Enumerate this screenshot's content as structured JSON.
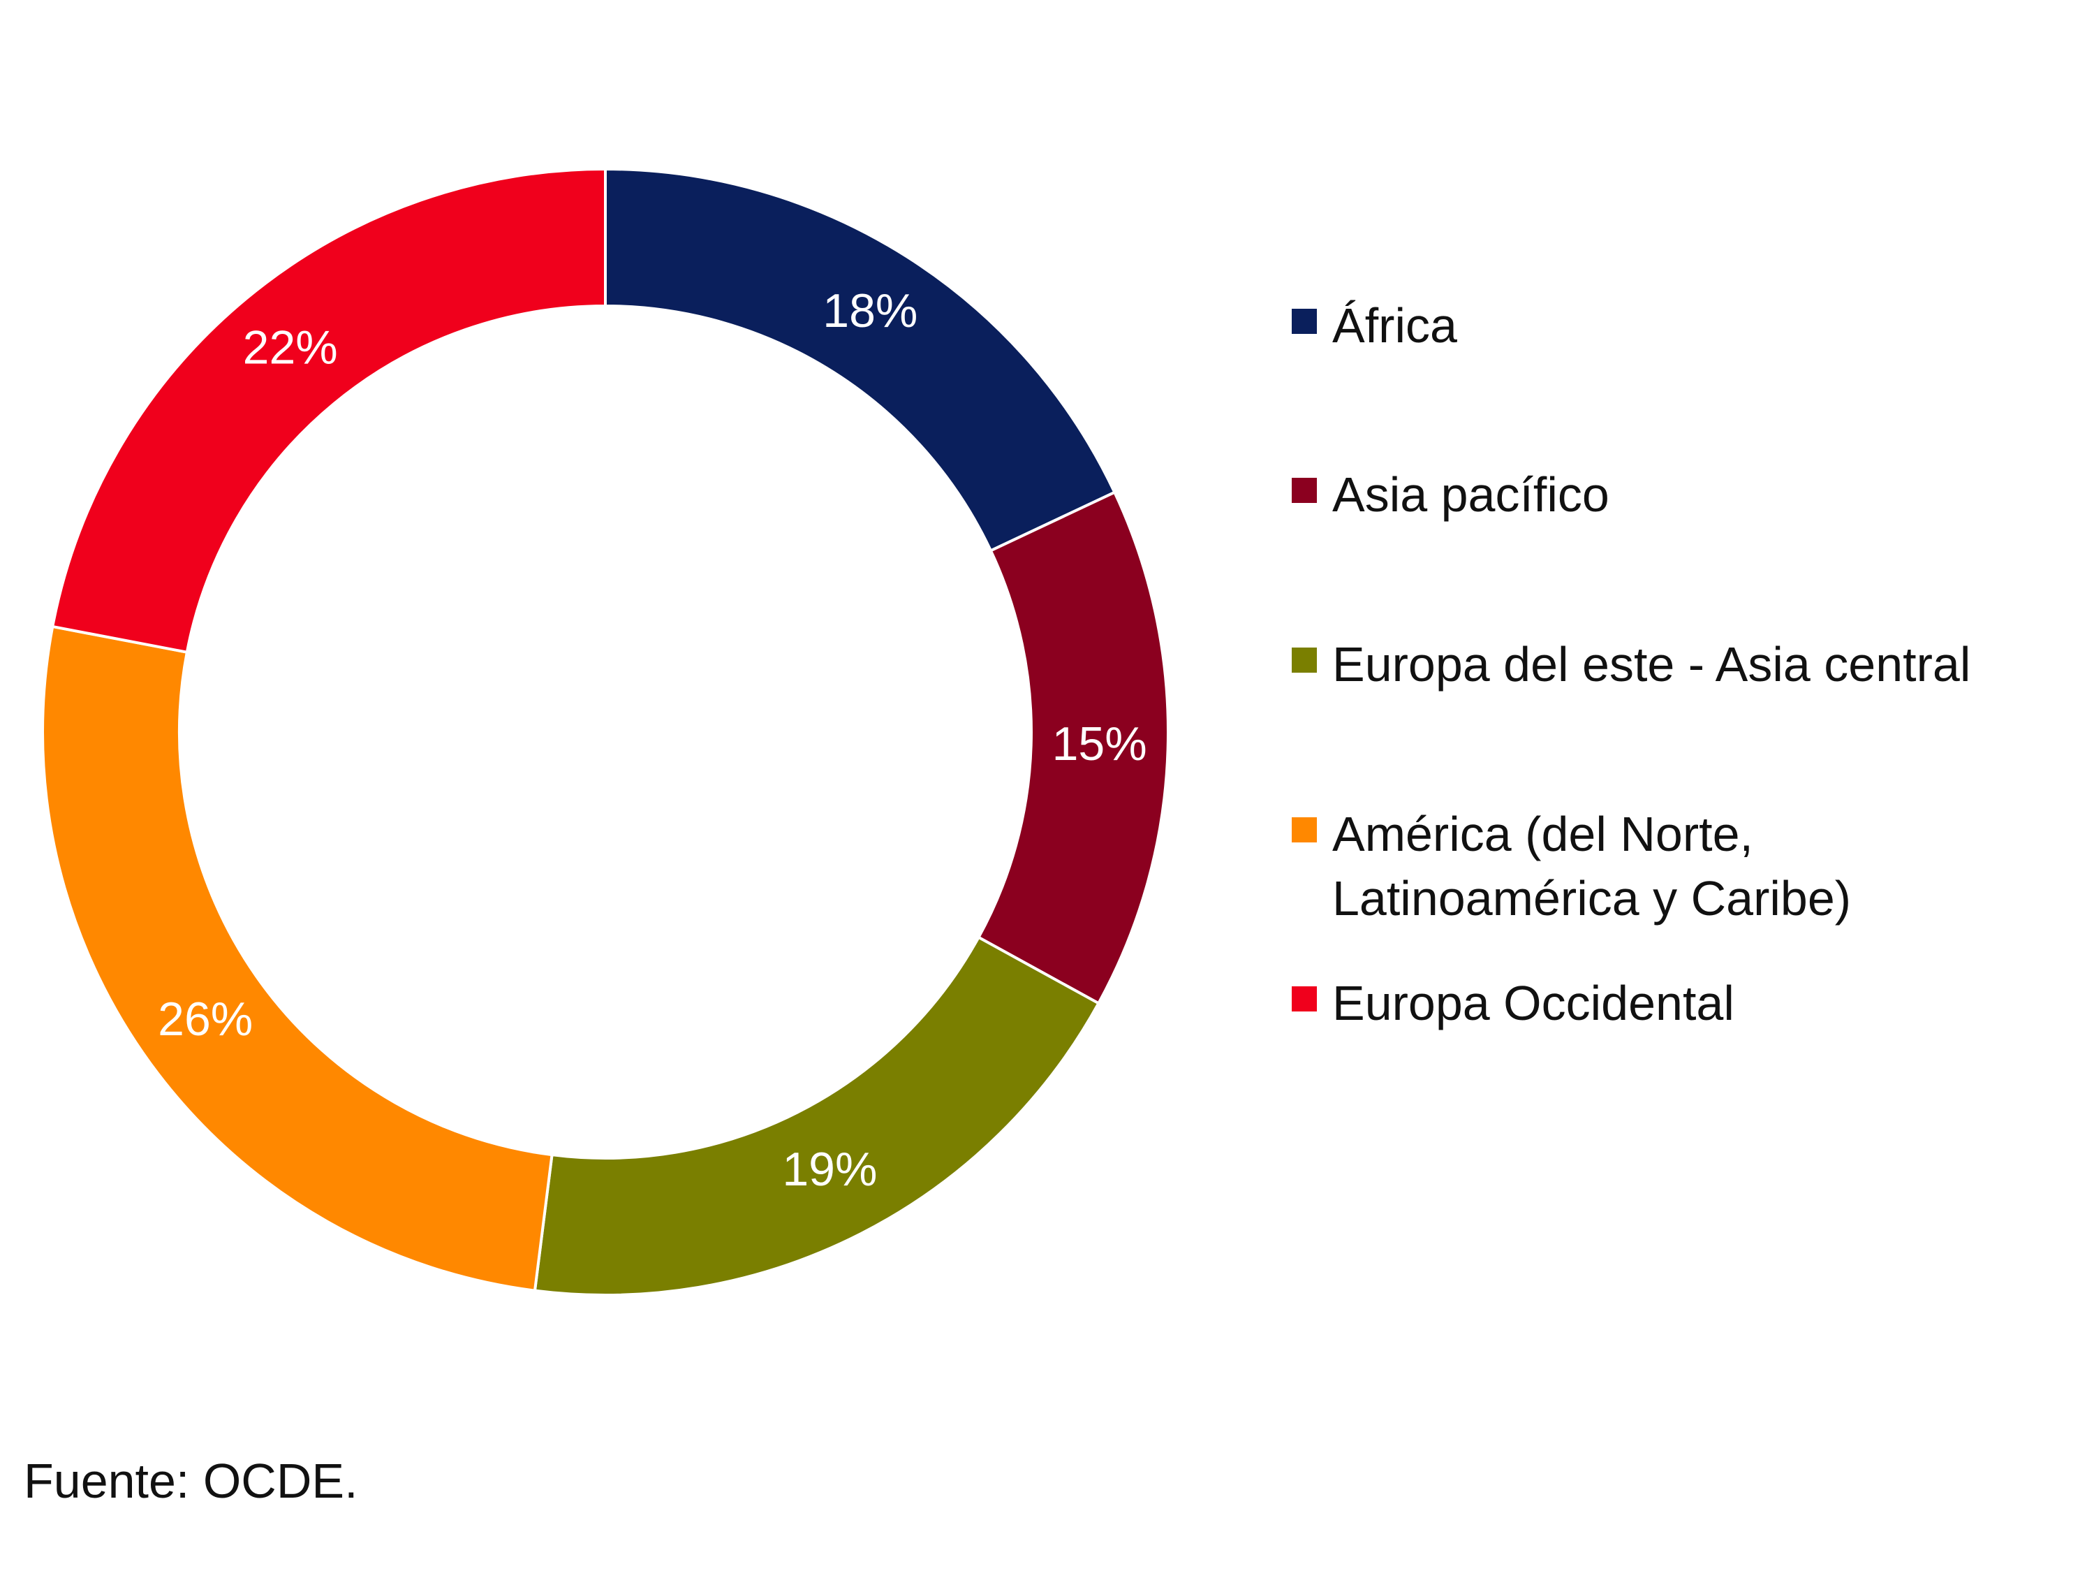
{
  "chart_data": {
    "type": "pie",
    "variant": "donut",
    "categories": [
      "África",
      "Asia pacífico",
      "Europa del este - Asia central",
      "América (del Norte,\nLatinoamérica y Caribe)",
      "Europa Occidental"
    ],
    "values": [
      18,
      15,
      19,
      26,
      22
    ],
    "labels": [
      "18%",
      "15%",
      "19%",
      "26%",
      "22%"
    ],
    "colors": [
      "#0a1f5c",
      "#8b001f",
      "#7a7f00",
      "#ff8800",
      "#f0001c"
    ],
    "legend_position": "right"
  },
  "source": "Fuente: OCDE."
}
